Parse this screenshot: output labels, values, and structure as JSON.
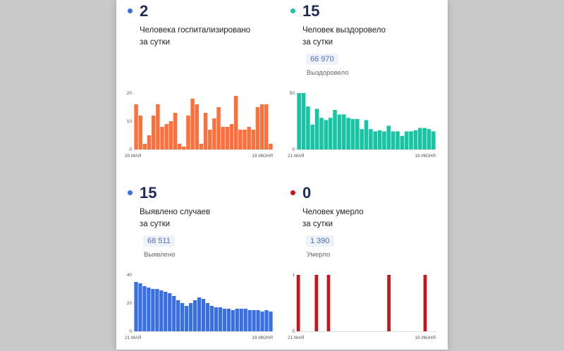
{
  "cards": [
    {
      "number": "2",
      "subtitle": "Человека госпитализировано\nза сутки",
      "dot_color": "#3a6fe0"
    },
    {
      "number": "15",
      "subtitle": "Человек выздоровело\nза сутки",
      "total": "66 970",
      "total_label": "Выздоровело",
      "dot_color": "#1fc1a2"
    },
    {
      "number": "15",
      "subtitle": "Выявлено случаев\nза сутки",
      "total": "68 511",
      "total_label": "Выявлено",
      "dot_color": "#3a6fe0"
    },
    {
      "number": "0",
      "subtitle": "Человек умерло\nза сутки",
      "total": "1 390",
      "total_label": "Умерло",
      "dot_color": "#c4161c"
    }
  ],
  "chart_data": [
    {
      "type": "bar",
      "color": "#ff6f3c",
      "ylim": [
        0,
        20
      ],
      "yticks": [
        "0",
        "10",
        "20"
      ],
      "x_start": "20 МАЯ",
      "x_end": "19 ИЮНЯ",
      "values": [
        16,
        12,
        2,
        5,
        12,
        16,
        8,
        9,
        10,
        13,
        2,
        1,
        12,
        18,
        16,
        2,
        13,
        7,
        11,
        15,
        8,
        8,
        9,
        19,
        7,
        7,
        8,
        7,
        15,
        16,
        16,
        2
      ]
    },
    {
      "type": "bar",
      "color": "#17c4a3",
      "ylim": [
        0,
        50
      ],
      "yticks": [
        "0",
        "50"
      ],
      "x_start": "21 МАЯ",
      "x_end": "19 ИЮНЯ",
      "values": [
        50,
        50,
        38,
        22,
        36,
        28,
        26,
        28,
        35,
        31,
        31,
        28,
        27,
        27,
        18,
        26,
        18,
        16,
        17,
        16,
        21,
        16,
        16,
        12,
        16,
        16,
        17,
        19,
        19,
        18,
        16
      ]
    },
    {
      "type": "bar",
      "color": "#3a6fe0",
      "ylim": [
        0,
        40
      ],
      "yticks": [
        "0",
        "20",
        "40"
      ],
      "x_start": "21 МАЯ",
      "x_end": "19 ИЮНЯ",
      "values": [
        35,
        34,
        32,
        31,
        30,
        30,
        29,
        28,
        27,
        25,
        22,
        20,
        18,
        20,
        22,
        24,
        23,
        20,
        18,
        17,
        17,
        16,
        16,
        15,
        16,
        16,
        16,
        15,
        15,
        15,
        14,
        15,
        14
      ]
    },
    {
      "type": "bar",
      "color": "#c4161c",
      "ylim": [
        0,
        1
      ],
      "yticks": [
        "0",
        "1"
      ],
      "x_start": "21 МАЯ",
      "x_end": "19 ИЮНЯ",
      "values": [
        1,
        0,
        0,
        0,
        0,
        0,
        1,
        0,
        0,
        0,
        1,
        0,
        0,
        0,
        0,
        0,
        0,
        0,
        0,
        0,
        0,
        0,
        0,
        0,
        0,
        0,
        0,
        0,
        0,
        0,
        1,
        0,
        0,
        0,
        0,
        0,
        0,
        0,
        0,
        0,
        0,
        0,
        1,
        0,
        0,
        0
      ]
    }
  ]
}
